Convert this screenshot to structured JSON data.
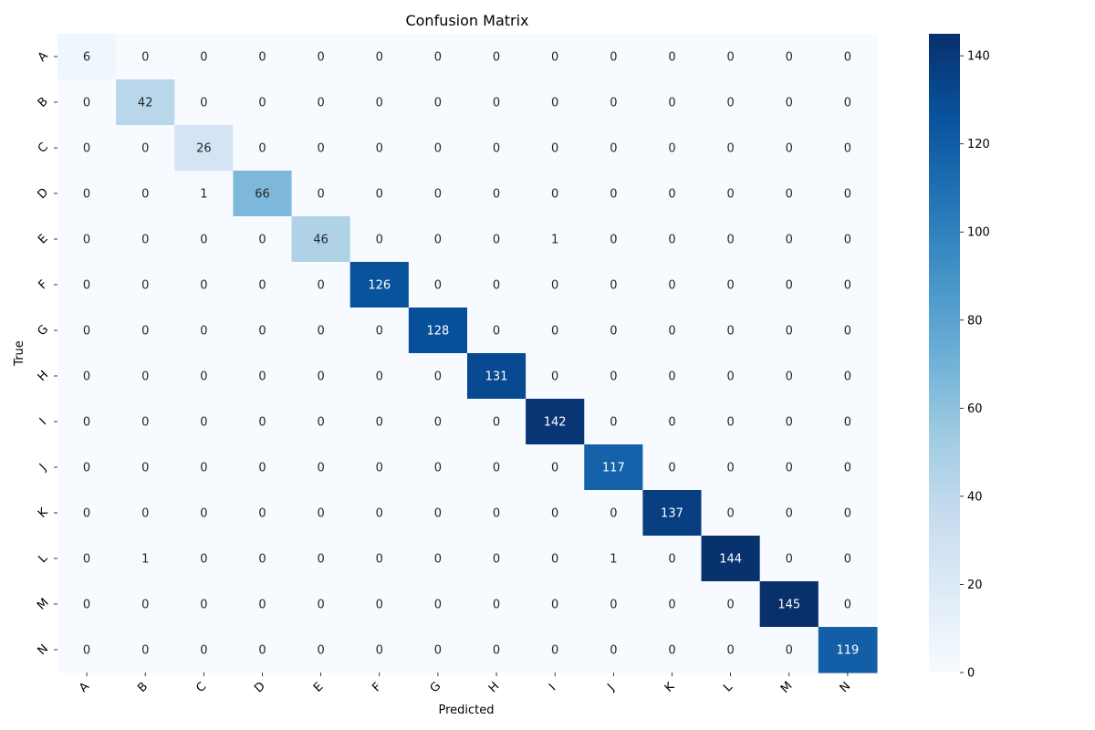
{
  "chart_data": {
    "type": "heatmap",
    "title": "Confusion Matrix",
    "xlabel": "Predicted",
    "ylabel": "True",
    "x_categories": [
      "A",
      "B",
      "C",
      "D",
      "E",
      "F",
      "G",
      "H",
      "I",
      "J",
      "K",
      "L",
      "M",
      "N"
    ],
    "y_categories": [
      "A",
      "B",
      "C",
      "D",
      "E",
      "F",
      "G",
      "H",
      "I",
      "J",
      "K",
      "L",
      "M",
      "N"
    ],
    "values": [
      [
        6,
        0,
        0,
        0,
        0,
        0,
        0,
        0,
        0,
        0,
        0,
        0,
        0,
        0
      ],
      [
        0,
        42,
        0,
        0,
        0,
        0,
        0,
        0,
        0,
        0,
        0,
        0,
        0,
        0
      ],
      [
        0,
        0,
        26,
        0,
        0,
        0,
        0,
        0,
        0,
        0,
        0,
        0,
        0,
        0
      ],
      [
        0,
        0,
        1,
        66,
        0,
        0,
        0,
        0,
        0,
        0,
        0,
        0,
        0,
        0
      ],
      [
        0,
        0,
        0,
        0,
        46,
        0,
        0,
        0,
        1,
        0,
        0,
        0,
        0,
        0
      ],
      [
        0,
        0,
        0,
        0,
        0,
        126,
        0,
        0,
        0,
        0,
        0,
        0,
        0,
        0
      ],
      [
        0,
        0,
        0,
        0,
        0,
        0,
        128,
        0,
        0,
        0,
        0,
        0,
        0,
        0
      ],
      [
        0,
        0,
        0,
        0,
        0,
        0,
        0,
        131,
        0,
        0,
        0,
        0,
        0,
        0
      ],
      [
        0,
        0,
        0,
        0,
        0,
        0,
        0,
        0,
        142,
        0,
        0,
        0,
        0,
        0
      ],
      [
        0,
        0,
        0,
        0,
        0,
        0,
        0,
        0,
        0,
        117,
        0,
        0,
        0,
        0
      ],
      [
        0,
        0,
        0,
        0,
        0,
        0,
        0,
        0,
        0,
        0,
        137,
        0,
        0,
        0
      ],
      [
        0,
        1,
        0,
        0,
        0,
        0,
        0,
        0,
        0,
        1,
        0,
        144,
        0,
        0
      ],
      [
        0,
        0,
        0,
        0,
        0,
        0,
        0,
        0,
        0,
        0,
        0,
        0,
        145,
        0
      ],
      [
        0,
        0,
        0,
        0,
        0,
        0,
        0,
        0,
        0,
        0,
        0,
        0,
        0,
        119
      ]
    ],
    "colormap": "Blues",
    "vmin": 0,
    "vmax": 145,
    "colorbar_ticks": [
      0,
      20,
      40,
      60,
      80,
      100,
      120,
      140
    ],
    "grid": false,
    "legend": "colorbar-right"
  }
}
